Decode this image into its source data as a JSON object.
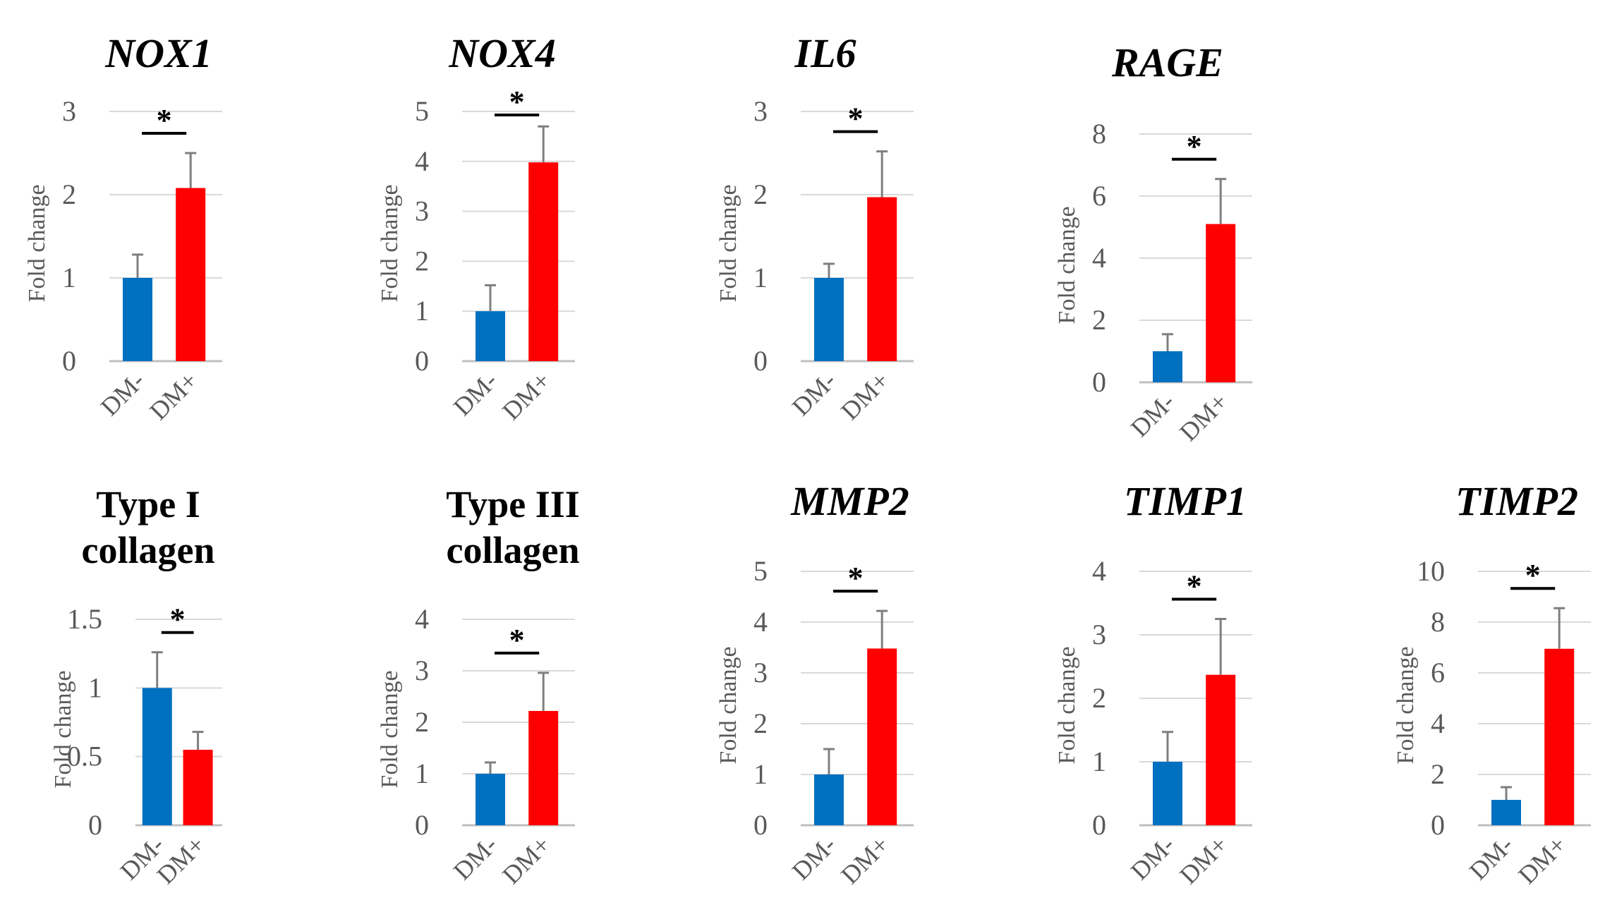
{
  "chart_data": [
    {
      "type": "bar",
      "title": "NOX1",
      "title_italic": true,
      "ylabel": "Fold change",
      "categories": [
        "DM-",
        "DM+"
      ],
      "values": [
        1.0,
        2.08
      ],
      "errors": [
        0.28,
        0.42
      ],
      "yticks": [
        "0",
        "1",
        "2",
        "3"
      ],
      "ylim": [
        0,
        3
      ],
      "significance": "*",
      "colors": [
        "#0070c0",
        "#ff0000"
      ],
      "grid": true
    },
    {
      "type": "bar",
      "title": "NOX4",
      "title_italic": true,
      "ylabel": "Fold change",
      "categories": [
        "DM-",
        "DM+"
      ],
      "values": [
        1.0,
        3.98
      ],
      "errors": [
        0.52,
        0.72
      ],
      "yticks": [
        "0",
        "1",
        "2",
        "3",
        "4",
        "5"
      ],
      "ylim": [
        0,
        5
      ],
      "significance": "*",
      "colors": [
        "#0070c0",
        "#ff0000"
      ],
      "grid": true
    },
    {
      "type": "bar",
      "title": "IL6",
      "title_italic": true,
      "ylabel": "Fold change",
      "categories": [
        "DM-",
        "DM+"
      ],
      "values": [
        1.0,
        1.97
      ],
      "errors": [
        0.17,
        0.55
      ],
      "yticks": [
        "0",
        "1",
        "2",
        "3"
      ],
      "ylim": [
        0,
        3
      ],
      "significance": "*",
      "colors": [
        "#0070c0",
        "#ff0000"
      ],
      "grid": true
    },
    {
      "type": "bar",
      "title": "RAGE",
      "title_italic": true,
      "ylabel": "Fold change",
      "categories": [
        "DM-",
        "DM+"
      ],
      "values": [
        1.0,
        5.1
      ],
      "errors": [
        0.55,
        1.45
      ],
      "yticks": [
        "0",
        "2",
        "4",
        "6",
        "8"
      ],
      "ylim": [
        0,
        8
      ],
      "significance": "*",
      "colors": [
        "#0070c0",
        "#ff0000"
      ],
      "grid": true
    },
    {
      "type": "bar",
      "title": "Type I\ncollagen",
      "title_italic": false,
      "ylabel": "Fold change",
      "categories": [
        "DM-",
        "DM+"
      ],
      "values": [
        1.0,
        0.55
      ],
      "errors": [
        0.26,
        0.13
      ],
      "yticks": [
        "0",
        "0.5",
        "1",
        "1.5"
      ],
      "ylim": [
        0,
        1.5
      ],
      "significance": "*",
      "colors": [
        "#0070c0",
        "#ff0000"
      ],
      "grid": true
    },
    {
      "type": "bar",
      "title": "Type III\ncollagen",
      "title_italic": false,
      "ylabel": "Fold change",
      "categories": [
        "DM-",
        "DM+"
      ],
      "values": [
        1.0,
        2.22
      ],
      "errors": [
        0.22,
        0.74
      ],
      "yticks": [
        "0",
        "1",
        "2",
        "3",
        "4"
      ],
      "ylim": [
        0,
        4
      ],
      "significance": "*",
      "colors": [
        "#0070c0",
        "#ff0000"
      ],
      "grid": true
    },
    {
      "type": "bar",
      "title": "MMP2",
      "title_italic": true,
      "ylabel": "Fold change",
      "categories": [
        "DM-",
        "DM+"
      ],
      "values": [
        1.0,
        3.48
      ],
      "errors": [
        0.5,
        0.74
      ],
      "yticks": [
        "0",
        "1",
        "2",
        "3",
        "4",
        "5"
      ],
      "ylim": [
        0,
        5
      ],
      "significance": "*",
      "colors": [
        "#0070c0",
        "#ff0000"
      ],
      "grid": true
    },
    {
      "type": "bar",
      "title": "TIMP1",
      "title_italic": true,
      "ylabel": "Fold change",
      "categories": [
        "DM-",
        "DM+"
      ],
      "values": [
        1.0,
        2.37
      ],
      "errors": [
        0.47,
        0.88
      ],
      "yticks": [
        "0",
        "1",
        "2",
        "3",
        "4"
      ],
      "ylim": [
        0,
        4
      ],
      "significance": "*",
      "colors": [
        "#0070c0",
        "#ff0000"
      ],
      "grid": true
    },
    {
      "type": "bar",
      "title": "TIMP2",
      "title_italic": true,
      "ylabel": "Fold change",
      "categories": [
        "DM-",
        "DM+"
      ],
      "values": [
        1.0,
        6.95
      ],
      "errors": [
        0.5,
        1.6
      ],
      "yticks": [
        "0",
        "2",
        "4",
        "6",
        "8",
        "10"
      ],
      "ylim": [
        0,
        10
      ],
      "significance": "*",
      "colors": [
        "#0070c0",
        "#ff0000"
      ],
      "grid": true
    }
  ]
}
